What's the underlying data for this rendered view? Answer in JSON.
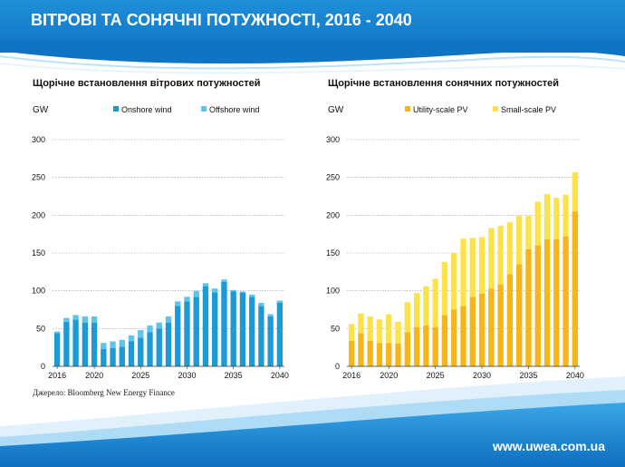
{
  "header": {
    "title": "ВІТРОВІ ТА СОНЯЧНІ ПОТУЖНОСТІ, 2016 - 2040"
  },
  "footer": {
    "website": "www.uwea.com.ua"
  },
  "source": "Джерело: Bloomberg New Energy Finance",
  "colors": {
    "header_blue": "#1580d0",
    "onshore": "#1b9ad6",
    "offshore": "#5ec4ea",
    "utility_pv": "#f6b61a",
    "small_pv": "#fde24a"
  },
  "chart_data": [
    {
      "type": "bar",
      "stacked": true,
      "title": "Щорічне встановлення вітрових потужностей",
      "unit_label": "GW",
      "x_ticks": [
        "2016",
        "2020",
        "2025",
        "2030",
        "2035",
        "2040"
      ],
      "y_ticks": [
        "0",
        "50",
        "100",
        "150",
        "200",
        "250",
        "300"
      ],
      "ylim": [
        0,
        300
      ],
      "grid": true,
      "legend_position": "top",
      "categories": [
        "2016",
        "2017",
        "2018",
        "2019",
        "2020",
        "2021",
        "2022",
        "2023",
        "2024",
        "2025",
        "2026",
        "2027",
        "2028",
        "2029",
        "2030",
        "2031",
        "2032",
        "2033",
        "2034",
        "2035",
        "2036",
        "2037",
        "2038",
        "2039",
        "2040"
      ],
      "series": [
        {
          "name": "Onshore wind",
          "color": "#1b9ad6",
          "values": [
            44,
            59,
            62,
            58,
            58,
            23,
            24,
            26,
            33,
            38,
            45,
            50,
            58,
            80,
            86,
            92,
            106,
            98,
            112,
            99,
            98,
            92,
            80,
            66,
            84
          ]
        },
        {
          "name": "Offshore wind",
          "color": "#5ec4ea",
          "values": [
            2,
            5,
            6,
            8,
            8,
            8,
            9,
            9,
            8,
            10,
            9,
            8,
            8,
            6,
            6,
            8,
            4,
            5,
            3,
            2,
            1,
            3,
            4,
            3,
            3
          ]
        }
      ]
    },
    {
      "type": "bar",
      "stacked": true,
      "title": "Щорічне встановлення сонячних потужностей",
      "unit_label": "GW",
      "x_ticks": [
        "2016",
        "2020",
        "2025",
        "2030",
        "2035",
        "2040"
      ],
      "y_ticks": [
        "0",
        "50",
        "100",
        "150",
        "200",
        "250",
        "300"
      ],
      "ylim": [
        0,
        300
      ],
      "grid": true,
      "legend_position": "top",
      "categories": [
        "2016",
        "2017",
        "2018",
        "2019",
        "2020",
        "2021",
        "2022",
        "2023",
        "2024",
        "2025",
        "2026",
        "2027",
        "2028",
        "2029",
        "2030",
        "2031",
        "2032",
        "2033",
        "2034",
        "2035",
        "2036",
        "2037",
        "2038",
        "2039",
        "2040"
      ],
      "series": [
        {
          "name": "Utility-scale PV",
          "color": "#f6b61a",
          "values": [
            34,
            44,
            34,
            31,
            31,
            30,
            45,
            52,
            54,
            52,
            68,
            75,
            80,
            92,
            96,
            103,
            108,
            122,
            135,
            155,
            160,
            168,
            168,
            172,
            205
          ]
        },
        {
          "name": "Small-scale PV",
          "color": "#fde24a",
          "values": [
            22,
            26,
            32,
            31,
            38,
            29,
            40,
            45,
            52,
            64,
            70,
            75,
            89,
            78,
            75,
            80,
            78,
            69,
            64,
            44,
            58,
            60,
            55,
            55,
            52
          ]
        }
      ]
    }
  ]
}
